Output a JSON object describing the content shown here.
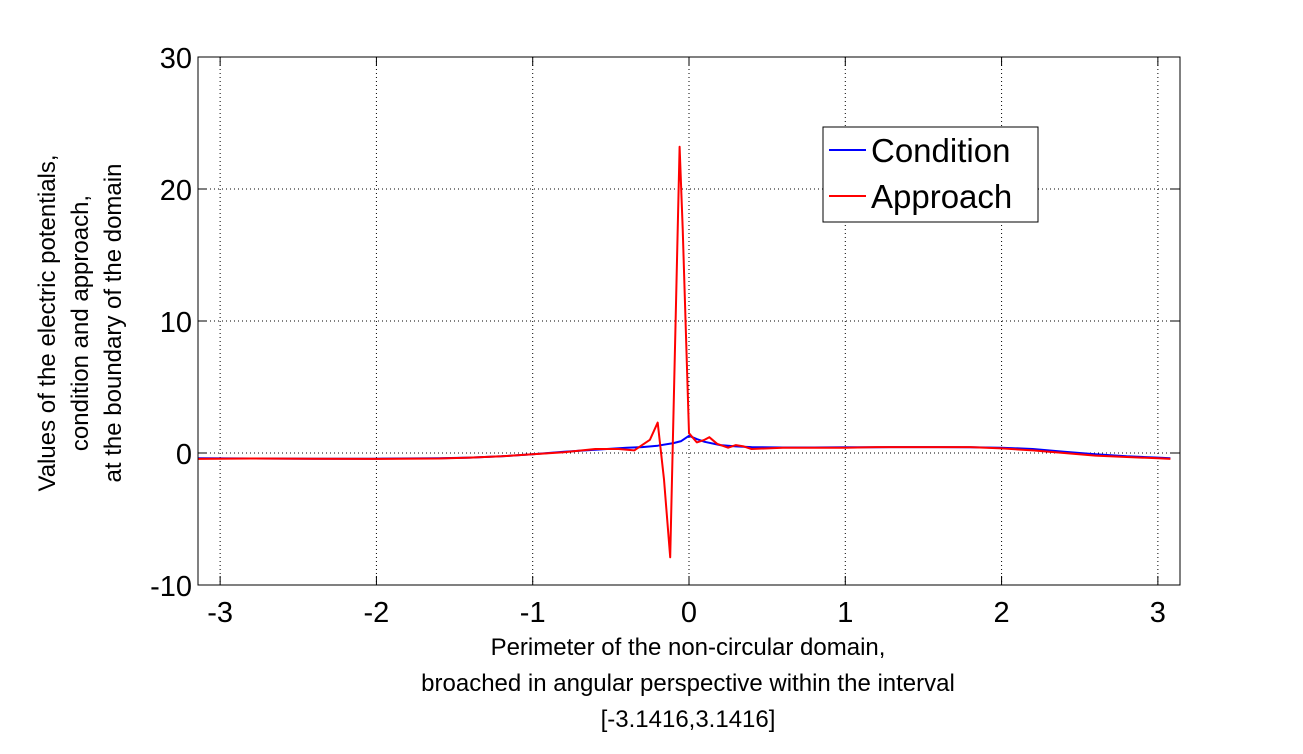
{
  "chart_data": {
    "type": "line",
    "title": "",
    "xlabel": [
      "Perimeter of the non-circular domain,",
      "broached in angular perspective within the interval",
      "[-3.1416,3.1416]"
    ],
    "ylabel": [
      "Values of the electric potentials,",
      "condition and approach,",
      "at the boundary of the domain"
    ],
    "xlim": [
      -3.1416,
      3.1416
    ],
    "ylim": [
      -10,
      30
    ],
    "xticks": [
      -3,
      -2,
      -1,
      0,
      1,
      2,
      3
    ],
    "xtick_labels": [
      "-3",
      "-2",
      "-1",
      "0",
      "1",
      "2",
      "3"
    ],
    "yticks": [
      -10,
      0,
      10,
      20,
      30
    ],
    "ytick_labels": [
      "-10",
      "0",
      "10",
      "20",
      "30"
    ],
    "grid": true,
    "legend_position": "top-right",
    "series": [
      {
        "name": "Condition",
        "color": "#0000ff",
        "x": [
          -3.14,
          -2.8,
          -2.4,
          -2.0,
          -1.6,
          -1.4,
          -1.2,
          -1.0,
          -0.8,
          -0.6,
          -0.4,
          -0.3,
          -0.2,
          -0.1,
          -0.05,
          0.0,
          0.05,
          0.1,
          0.2,
          0.3,
          0.4,
          0.6,
          0.8,
          1.0,
          1.2,
          1.4,
          1.6,
          1.8,
          2.0,
          2.2,
          2.4,
          2.6,
          2.8,
          3.0,
          3.08
        ],
        "values": [
          -0.4,
          -0.42,
          -0.43,
          -0.43,
          -0.4,
          -0.35,
          -0.25,
          -0.1,
          0.1,
          0.25,
          0.4,
          0.45,
          0.55,
          0.75,
          0.9,
          1.3,
          1.05,
          0.85,
          0.6,
          0.5,
          0.45,
          0.42,
          0.42,
          0.43,
          0.44,
          0.45,
          0.45,
          0.44,
          0.4,
          0.3,
          0.1,
          -0.1,
          -0.25,
          -0.35,
          -0.4
        ]
      },
      {
        "name": "Approach",
        "color": "#ff0000",
        "x": [
          -3.14,
          -2.8,
          -2.4,
          -2.0,
          -1.6,
          -1.4,
          -1.2,
          -1.0,
          -0.8,
          -0.6,
          -0.45,
          -0.35,
          -0.3,
          -0.25,
          -0.2,
          -0.16,
          -0.12,
          -0.06,
          -0.04,
          0.0,
          0.05,
          0.1,
          0.13,
          0.18,
          0.25,
          0.3,
          0.35,
          0.4,
          0.6,
          0.8,
          1.0,
          1.2,
          1.4,
          1.6,
          1.8,
          2.0,
          2.2,
          2.4,
          2.6,
          2.8,
          3.0,
          3.08
        ],
        "values": [
          -0.45,
          -0.42,
          -0.43,
          -0.45,
          -0.42,
          -0.35,
          -0.25,
          -0.1,
          0.05,
          0.3,
          0.3,
          0.2,
          0.6,
          1.0,
          2.3,
          -2.0,
          -7.9,
          23.2,
          17.0,
          1.5,
          0.8,
          1.0,
          1.2,
          0.7,
          0.4,
          0.6,
          0.5,
          0.3,
          0.4,
          0.4,
          0.4,
          0.45,
          0.45,
          0.45,
          0.45,
          0.35,
          0.2,
          0.0,
          -0.2,
          -0.3,
          -0.4,
          -0.45
        ]
      }
    ]
  }
}
